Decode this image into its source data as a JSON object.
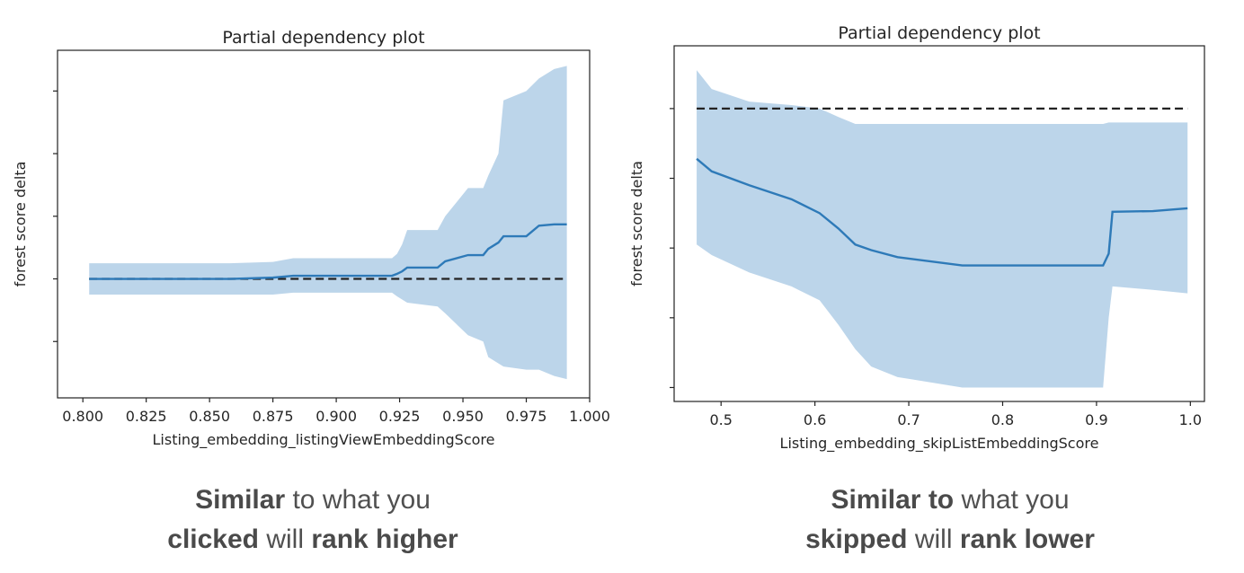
{
  "chart_data": [
    {
      "type": "line",
      "title": "Partial dependency plot",
      "xlabel": "Listing_embedding_listingViewEmbeddingScore",
      "ylabel": "forest score delta",
      "xlim": [
        0.79,
        1.0
      ],
      "ylim": [
        -1.9,
        3.65
      ],
      "x_ticks": [
        "0.800",
        "0.825",
        "0.850",
        "0.875",
        "0.900",
        "0.925",
        "0.950",
        "0.975",
        "1.000"
      ],
      "y_ticks": [
        -1,
        0,
        1,
        2,
        3
      ],
      "y_tick_labels_visible": false,
      "baseline": 0,
      "colors": {
        "line": "#2e7ab8",
        "band": "#bcd5ea",
        "baseline": "#222222"
      },
      "series": [
        {
          "x": [
            0.8025,
            0.858,
            0.875,
            0.883,
            0.922,
            0.924,
            0.926,
            0.928,
            0.94,
            0.943,
            0.952,
            0.958,
            0.96,
            0.964,
            0.966,
            0.975,
            0.98,
            0.986,
            0.991
          ],
          "y": [
            0.0,
            0.0,
            0.02,
            0.05,
            0.05,
            0.08,
            0.12,
            0.18,
            0.18,
            0.28,
            0.38,
            0.38,
            0.48,
            0.58,
            0.68,
            0.68,
            0.85,
            0.87,
            0.87
          ],
          "lower": [
            -0.25,
            -0.25,
            -0.25,
            -0.22,
            -0.22,
            -0.28,
            -0.33,
            -0.38,
            -0.44,
            -0.55,
            -0.9,
            -1.0,
            -1.25,
            -1.35,
            -1.4,
            -1.45,
            -1.45,
            -1.55,
            -1.6
          ],
          "upper": [
            0.25,
            0.25,
            0.27,
            0.33,
            0.33,
            0.4,
            0.55,
            0.78,
            0.78,
            1.0,
            1.45,
            1.45,
            1.65,
            2.0,
            2.85,
            3.0,
            3.2,
            3.35,
            3.4
          ]
        }
      ]
    },
    {
      "type": "line",
      "title": "Partial dependency plot",
      "xlabel": "Listing_embedding_skipListEmbeddingScore",
      "ylabel": "forest score delta",
      "xlim": [
        0.45,
        1.015
      ],
      "ylim": [
        -4.2,
        0.9
      ],
      "x_ticks": [
        0.5,
        0.6,
        0.7,
        0.8,
        0.9,
        1.0
      ],
      "x_tick_labels": [
        "0.5",
        "0.6",
        "0.7",
        "0.8",
        "0.9",
        "1.0"
      ],
      "y_ticks": [
        -4,
        -3,
        -2,
        -1,
        0
      ],
      "y_tick_labels_visible": false,
      "baseline": 0,
      "colors": {
        "line": "#2e7ab8",
        "band": "#bcd5ea",
        "baseline": "#222222"
      },
      "series": [
        {
          "x": [
            0.474,
            0.49,
            0.53,
            0.575,
            0.605,
            0.625,
            0.643,
            0.66,
            0.688,
            0.757,
            0.907,
            0.913,
            0.917,
            0.96,
            0.997
          ],
          "y": [
            -0.72,
            -0.9,
            -1.1,
            -1.3,
            -1.5,
            -1.72,
            -1.95,
            -2.03,
            -2.13,
            -2.25,
            -2.25,
            -2.08,
            -1.48,
            -1.47,
            -1.43
          ],
          "lower": [
            -1.95,
            -2.1,
            -2.35,
            -2.55,
            -2.75,
            -3.1,
            -3.45,
            -3.7,
            -3.85,
            -4.0,
            -4.0,
            -3.0,
            -2.55,
            -2.6,
            -2.65
          ],
          "upper": [
            0.55,
            0.28,
            0.1,
            0.05,
            0.0,
            -0.12,
            -0.22,
            -0.22,
            -0.22,
            -0.22,
            -0.22,
            -0.2,
            -0.2,
            -0.2,
            -0.2
          ]
        }
      ]
    }
  ],
  "captions": [
    {
      "line1": [
        {
          "text": "Similar",
          "bold": true
        },
        {
          "text": " to what you",
          "bold": false
        }
      ],
      "line2": [
        {
          "text": "clicked",
          "bold": true
        },
        {
          "text": " will ",
          "bold": false
        },
        {
          "text": "rank higher",
          "bold": true
        }
      ]
    },
    {
      "line1": [
        {
          "text": "Similar to",
          "bold": true
        },
        {
          "text": " what you",
          "bold": false
        }
      ],
      "line2": [
        {
          "text": "skipped",
          "bold": true
        },
        {
          "text": " will ",
          "bold": false
        },
        {
          "text": "rank lower",
          "bold": true
        }
      ]
    }
  ]
}
